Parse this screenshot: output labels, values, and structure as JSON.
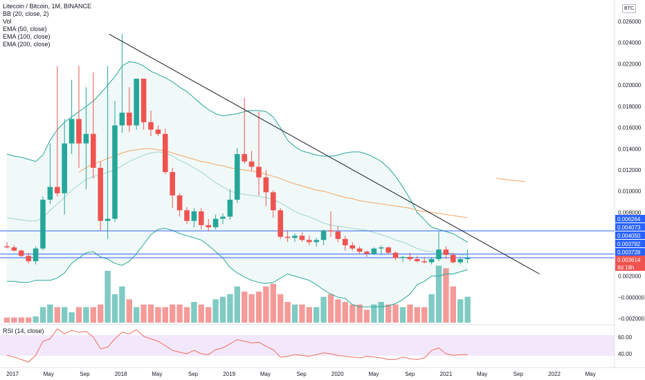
{
  "legend": {
    "title": "Litecoin / Bitcoin, 1M, BINANCE",
    "indicators": [
      "BB (20, close, 2)",
      "Vol",
      "EMA (50, close)",
      "EMA (100, close)",
      "EMA (200, close)"
    ]
  },
  "rsi_legend": "RSI (14, close)",
  "unit_label": "BTC",
  "price_labels": [
    {
      "text": "0.006264",
      "color": "#2962ff",
      "value": 0.006264
    },
    {
      "text": "0.004073",
      "color": "#2962ff",
      "value": 0.004073
    },
    {
      "text": "0.004050",
      "color": "#2962ff",
      "value": 0.00405
    },
    {
      "text": "0.003782",
      "color": "#2962ff",
      "value": 0.003782
    },
    {
      "text": "0.003728",
      "color": "#2962ff",
      "value": 0.003728
    },
    {
      "text": "0.003614",
      "color": "#ef5350",
      "value": 0.003614
    },
    {
      "text": "8d 18h",
      "color": "#ef5350",
      "value": null
    }
  ],
  "colors": {
    "up": "#26a69a",
    "down": "#ef5350",
    "bb": "#26a69a",
    "ema100": "#f7a35c",
    "rsi": "#ef6c59",
    "hline": "#2962ff",
    "trend": "#131722"
  },
  "chart_data": {
    "type": "candlestick",
    "price_axis": {
      "ticks": [
        0.026,
        0.024,
        0.022,
        0.02,
        0.018,
        0.016,
        0.014,
        0.012,
        0.01,
        0.008,
        0.002,
        -0.0,
        -0.002
      ],
      "tick_labels": [
        "0.026000",
        "0.024000",
        "0.022000",
        "0.020000",
        "0.018000",
        "0.016000",
        "0.014000",
        "0.012000",
        "0.010000",
        "0.008000",
        "0.002000",
        "−0.000000",
        "−0.002000"
      ],
      "range": [
        -0.0025,
        0.0275
      ]
    },
    "rsi_axis": {
      "ticks": [
        60,
        40
      ],
      "tick_labels": [
        "60.00",
        "40.00"
      ],
      "range": [
        20,
        75
      ]
    },
    "time_axis": {
      "labels": [
        "2017",
        "May",
        "Sep",
        "2018",
        "May",
        "Sep",
        "2019",
        "May",
        "Sep",
        "2020",
        "May",
        "Sep",
        "2021",
        "May",
        "Sep",
        "2022",
        "May"
      ],
      "start": "2016-01"
    },
    "candles": [
      [
        0.0048,
        0.0052,
        0.0046,
        0.0047
      ],
      [
        0.0047,
        0.0049,
        0.0043,
        0.0044
      ],
      [
        0.0044,
        0.0045,
        0.0038,
        0.0039
      ],
      [
        0.0039,
        0.0042,
        0.0032,
        0.0034
      ],
      [
        0.0034,
        0.0048,
        0.0031,
        0.0046
      ],
      [
        0.0046,
        0.0095,
        0.0044,
        0.0092
      ],
      [
        0.0092,
        0.0145,
        0.0088,
        0.0104
      ],
      [
        0.0104,
        0.0218,
        0.0095,
        0.0098
      ],
      [
        0.0098,
        0.0168,
        0.0078,
        0.0145
      ],
      [
        0.0145,
        0.0205,
        0.0135,
        0.0168
      ],
      [
        0.0168,
        0.0218,
        0.0122,
        0.0145
      ],
      [
        0.0145,
        0.0198,
        0.0102,
        0.0154
      ],
      [
        0.0154,
        0.0212,
        0.0112,
        0.0122
      ],
      [
        0.0122,
        0.0128,
        0.0063,
        0.0072
      ],
      [
        0.0072,
        0.0218,
        0.0055,
        0.0074
      ],
      [
        0.0074,
        0.0185,
        0.0071,
        0.0162
      ],
      [
        0.0162,
        0.0248,
        0.0155,
        0.0174
      ],
      [
        0.0174,
        0.0198,
        0.0156,
        0.0162
      ],
      [
        0.0162,
        0.0206,
        0.0158,
        0.0206
      ],
      [
        0.0206,
        0.0206,
        0.0158,
        0.0165
      ],
      [
        0.0165,
        0.0176,
        0.0152,
        0.0158
      ],
      [
        0.0158,
        0.0162,
        0.0152,
        0.0154
      ],
      [
        0.0154,
        0.0159,
        0.0116,
        0.0118
      ],
      [
        0.0118,
        0.0122,
        0.0084,
        0.0096
      ],
      [
        0.0096,
        0.0098,
        0.0076,
        0.0082
      ],
      [
        0.0082,
        0.0085,
        0.0069,
        0.0072
      ],
      [
        0.0072,
        0.0084,
        0.0066,
        0.0081
      ],
      [
        0.0081,
        0.0084,
        0.0064,
        0.0068
      ],
      [
        0.0068,
        0.0074,
        0.0062,
        0.0066
      ],
      [
        0.0066,
        0.0078,
        0.0064,
        0.0074
      ],
      [
        0.0074,
        0.0079,
        0.0069,
        0.0076
      ],
      [
        0.0076,
        0.0102,
        0.0073,
        0.0092
      ],
      [
        0.0092,
        0.0141,
        0.0089,
        0.0135
      ],
      [
        0.0135,
        0.0188,
        0.0126,
        0.0128
      ],
      [
        0.0128,
        0.0138,
        0.0119,
        0.0123
      ],
      [
        0.0123,
        0.0175,
        0.0096,
        0.0113
      ],
      [
        0.0113,
        0.012,
        0.0086,
        0.0099
      ],
      [
        0.0099,
        0.0101,
        0.0075,
        0.0082
      ],
      [
        0.0082,
        0.0084,
        0.0055,
        0.0057
      ],
      [
        0.0057,
        0.0063,
        0.0052,
        0.0056
      ],
      [
        0.0056,
        0.006,
        0.0052,
        0.0058
      ],
      [
        0.0058,
        0.0061,
        0.0052,
        0.0054
      ],
      [
        0.0054,
        0.0058,
        0.0049,
        0.0052
      ],
      [
        0.0052,
        0.0056,
        0.0048,
        0.0054
      ],
      [
        0.0054,
        0.0064,
        0.0049,
        0.0063
      ],
      [
        0.0063,
        0.0081,
        0.0057,
        0.0062
      ],
      [
        0.0062,
        0.0067,
        0.0052,
        0.0055
      ],
      [
        0.0055,
        0.0058,
        0.0044,
        0.0049
      ],
      [
        0.0049,
        0.0052,
        0.0044,
        0.0046
      ],
      [
        0.0046,
        0.0048,
        0.0041,
        0.0043
      ],
      [
        0.0043,
        0.0044,
        0.0038,
        0.0041
      ],
      [
        0.0041,
        0.0047,
        0.004,
        0.0046
      ],
      [
        0.0046,
        0.0049,
        0.004,
        0.0047
      ],
      [
        0.0047,
        0.0048,
        0.0041,
        0.0042
      ],
      [
        0.0042,
        0.0043,
        0.0035,
        0.0037
      ],
      [
        0.0037,
        0.0039,
        0.0033,
        0.0038
      ],
      [
        0.0038,
        0.0042,
        0.0034,
        0.0036
      ],
      [
        0.0036,
        0.0039,
        0.0033,
        0.0034
      ],
      [
        0.0034,
        0.0038,
        0.0032,
        0.0033
      ],
      [
        0.0033,
        0.0037,
        0.0031,
        0.0036
      ],
      [
        0.0036,
        0.0062,
        0.0034,
        0.0045
      ],
      [
        0.0045,
        0.0048,
        0.0036,
        0.004
      ],
      [
        0.004,
        0.0042,
        0.0032,
        0.0033
      ],
      [
        0.0033,
        0.0038,
        0.0031,
        0.0036
      ],
      [
        0.0036,
        0.0045,
        0.0032,
        0.0037
      ]
    ],
    "volume": [
      0.1,
      0.1,
      0.1,
      0.1,
      0.12,
      0.3,
      0.35,
      0.3,
      0.3,
      0.2,
      0.3,
      0.3,
      0.3,
      0.35,
      1.0,
      0.55,
      0.7,
      0.45,
      0.3,
      0.35,
      0.35,
      0.3,
      0.3,
      0.35,
      0.35,
      0.3,
      0.4,
      0.35,
      0.3,
      0.45,
      0.5,
      0.55,
      0.7,
      0.6,
      0.55,
      0.6,
      0.7,
      0.75,
      0.55,
      0.4,
      0.35,
      0.35,
      0.3,
      0.3,
      0.5,
      0.55,
      0.45,
      0.4,
      0.35,
      0.35,
      0.25,
      0.35,
      0.4,
      0.35,
      0.35,
      0.3,
      0.35,
      0.3,
      0.3,
      0.55,
      1.1,
      1.05,
      0.7,
      0.45,
      0.5
    ],
    "bb_upper": [
      0.0135,
      0.0133,
      0.0132,
      0.013,
      0.0128,
      0.0134,
      0.0148,
      0.0158,
      0.0165,
      0.017,
      0.0175,
      0.018,
      0.0185,
      0.0192,
      0.02,
      0.0208,
      0.0218,
      0.0222,
      0.0221,
      0.0218,
      0.0213,
      0.021,
      0.0207,
      0.0203,
      0.0198,
      0.0194,
      0.0188,
      0.0182,
      0.0177,
      0.0173,
      0.0171,
      0.0172,
      0.0173,
      0.0175,
      0.0176,
      0.0176,
      0.0175,
      0.017,
      0.016,
      0.0148,
      0.0142,
      0.0138,
      0.0136,
      0.0134,
      0.0133,
      0.0133,
      0.0134,
      0.0136,
      0.0137,
      0.0137,
      0.0135,
      0.0132,
      0.0128,
      0.0122,
      0.0114,
      0.0104,
      0.0093,
      0.008,
      0.0073,
      0.0066,
      0.0064,
      0.0062,
      0.006,
      0.0056,
      0.0052
    ],
    "bb_middle": [
      0.0075,
      0.0074,
      0.0073,
      0.0072,
      0.0072,
      0.0075,
      0.0082,
      0.0088,
      0.0094,
      0.0101,
      0.0106,
      0.0111,
      0.0114,
      0.0115,
      0.0118,
      0.012,
      0.0124,
      0.0128,
      0.0131,
      0.0134,
      0.0136,
      0.0137,
      0.0136,
      0.0133,
      0.0129,
      0.0126,
      0.0122,
      0.0118,
      0.0113,
      0.0108,
      0.0104,
      0.01,
      0.0098,
      0.0097,
      0.0096,
      0.0095,
      0.0094,
      0.0092,
      0.0089,
      0.0085,
      0.0081,
      0.0078,
      0.0076,
      0.0073,
      0.007,
      0.0068,
      0.0067,
      0.0066,
      0.0065,
      0.0064,
      0.0063,
      0.0061,
      0.0059,
      0.0057,
      0.0054,
      0.0052,
      0.0049,
      0.0046,
      0.0044,
      0.0043,
      0.0042,
      0.0042,
      0.0041,
      0.004,
      0.004
    ],
    "bb_lower": [
      0.0015,
      0.0015,
      0.0014,
      0.0014,
      0.0016,
      0.0016,
      0.0016,
      0.0018,
      0.0023,
      0.0032,
      0.0037,
      0.0042,
      0.0043,
      0.0038,
      0.0036,
      0.0032,
      0.003,
      0.0034,
      0.0041,
      0.005,
      0.0059,
      0.0064,
      0.0065,
      0.0063,
      0.006,
      0.0058,
      0.0056,
      0.0054,
      0.0049,
      0.0043,
      0.0037,
      0.0028,
      0.0023,
      0.0019,
      0.0016,
      0.0014,
      0.0013,
      0.0014,
      0.0018,
      0.0022,
      0.002,
      0.0018,
      0.0016,
      0.0012,
      0.0007,
      0.0003,
      0.0,
      -0.0001,
      -0.0007,
      -0.0009,
      -0.0009,
      -0.0009,
      -0.0009,
      -0.0008,
      -0.0006,
      -0.0002,
      0.0003,
      0.0012,
      0.0015,
      0.002,
      0.002,
      0.0022,
      0.0022,
      0.0024,
      0.0026
    ],
    "ema100": [
      null,
      null,
      null,
      null,
      null,
      null,
      null,
      null,
      null,
      null,
      0.0118,
      0.0122,
      0.0126,
      0.0128,
      0.0131,
      0.0133,
      0.0136,
      0.0138,
      0.0139,
      0.014,
      0.014,
      0.0139,
      0.0138,
      0.0136,
      0.0134,
      0.0132,
      0.013,
      0.0128,
      0.0127,
      0.0125,
      0.0124,
      0.0122,
      0.0121,
      0.012,
      0.0119,
      0.0118,
      0.0116,
      0.0114,
      0.0112,
      0.0109,
      0.0107,
      0.0105,
      0.0103,
      0.0101,
      0.01,
      0.0098,
      0.0096,
      0.0094,
      0.0093,
      0.0091,
      0.009,
      0.0089,
      0.0088,
      0.0087,
      0.0086,
      0.0085,
      0.0084,
      0.0082,
      0.0081,
      0.008,
      0.0079,
      0.0078,
      0.0077,
      0.0076,
      0.0075
    ],
    "ema_stub": {
      "from_index": 68,
      "to_index": 72,
      "from_value": 0.0112,
      "to_value": 0.0109
    },
    "horizontal_levels": [
      0.006264,
      0.004073,
      0.003728
    ],
    "trendline": {
      "x_index_start": 14.2,
      "value_start": 0.0248,
      "x_index_end": 74,
      "value_end": 0.0022
    },
    "rsi": [
      38,
      36,
      33,
      30,
      38,
      55,
      58,
      70,
      64,
      68,
      66,
      67,
      60,
      46,
      48,
      58,
      66,
      64,
      69,
      61,
      58,
      55,
      50,
      44,
      42,
      40,
      44,
      40,
      39,
      45,
      47,
      52,
      57,
      55,
      53,
      54,
      49,
      45,
      36,
      37,
      39,
      38,
      37,
      39,
      41,
      40,
      38,
      37,
      36,
      35,
      37,
      36,
      35,
      33,
      33,
      36,
      34,
      33,
      35,
      44,
      47,
      40,
      38,
      39,
      39
    ]
  }
}
